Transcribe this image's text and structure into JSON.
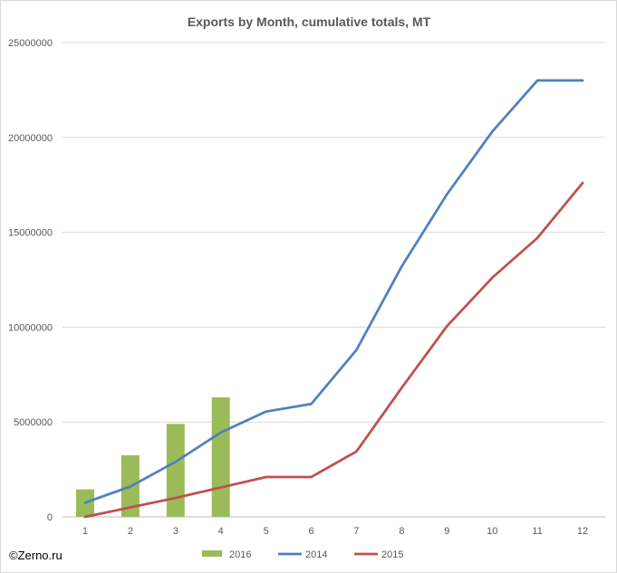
{
  "chart_data": {
    "type": "bar+line",
    "title": "Exports by Month, cumulative totals, MT",
    "categories": [
      "1",
      "2",
      "3",
      "4",
      "5",
      "6",
      "7",
      "8",
      "9",
      "10",
      "11",
      "12"
    ],
    "y_ticks": [
      "0",
      "5000000",
      "10000000",
      "15000000",
      "20000000",
      "25000000"
    ],
    "ylim": [
      0,
      25000000
    ],
    "grid": true,
    "legend_position": "bottom",
    "series": [
      {
        "name": "2016",
        "kind": "bar",
        "color": "#9bbb59",
        "values": [
          1450000,
          3250000,
          4900000,
          6300000,
          null,
          null,
          null,
          null,
          null,
          null,
          null,
          null
        ]
      },
      {
        "name": "2014",
        "kind": "line",
        "color": "#4f81bd",
        "values": [
          750000,
          1600000,
          2900000,
          4450000,
          5550000,
          5950000,
          8800000,
          13200000,
          17000000,
          20300000,
          23000000,
          23000000
        ]
      },
      {
        "name": "2015",
        "kind": "line",
        "color": "#c0504d",
        "values": [
          0,
          500000,
          1000000,
          1550000,
          2100000,
          2100000,
          3450000,
          6800000,
          10050000,
          12600000,
          14700000,
          17600000
        ]
      }
    ]
  },
  "source_label": "©Zerno.ru"
}
